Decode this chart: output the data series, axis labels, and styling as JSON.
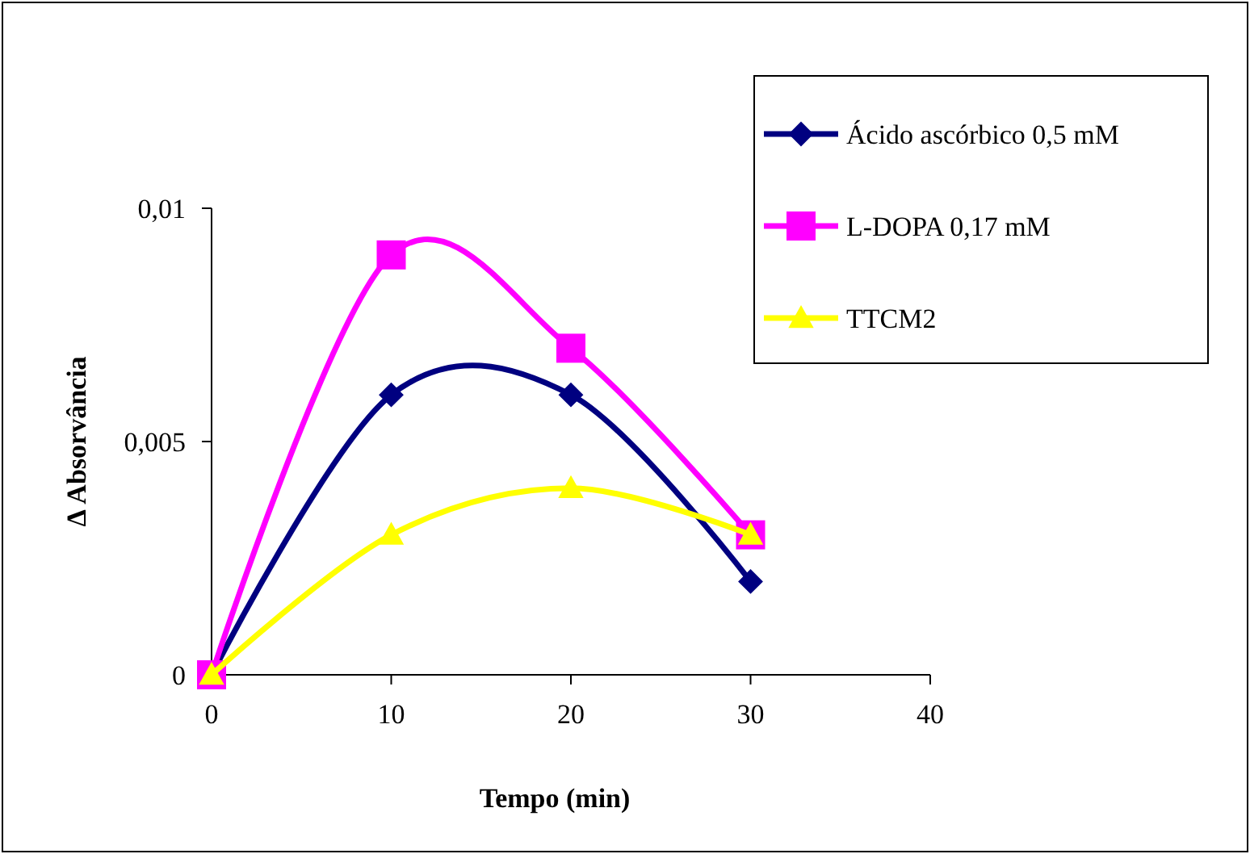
{
  "chart_data": {
    "type": "line",
    "xlabel": "Tempo (min)",
    "ylabel": "Δ Absorvância",
    "x": [
      0,
      10,
      20,
      30
    ],
    "xlim": [
      0,
      40
    ],
    "xticks": [
      0,
      10,
      20,
      30,
      40
    ],
    "ylim": [
      0,
      0.01
    ],
    "yticks": [
      {
        "value": 0,
        "label": "0"
      },
      {
        "value": 0.005,
        "label": "0,005"
      },
      {
        "value": 0.01,
        "label": "0,01"
      }
    ],
    "grid": false,
    "legend": "right",
    "series": [
      {
        "name": "Ácido ascórbico 0,5 mM",
        "color": "#000080",
        "marker": "diamond",
        "values": [
          0,
          0.006,
          0.006,
          0.002
        ]
      },
      {
        "name": "L-DOPA 0,17 mM",
        "color": "#ff00ff",
        "marker": "square",
        "values": [
          0,
          0.009,
          0.007,
          0.003
        ]
      },
      {
        "name": "TTCM2",
        "color": "#ffff00",
        "marker": "triangle",
        "values": [
          0,
          0.003,
          0.004,
          0.003
        ]
      }
    ]
  }
}
